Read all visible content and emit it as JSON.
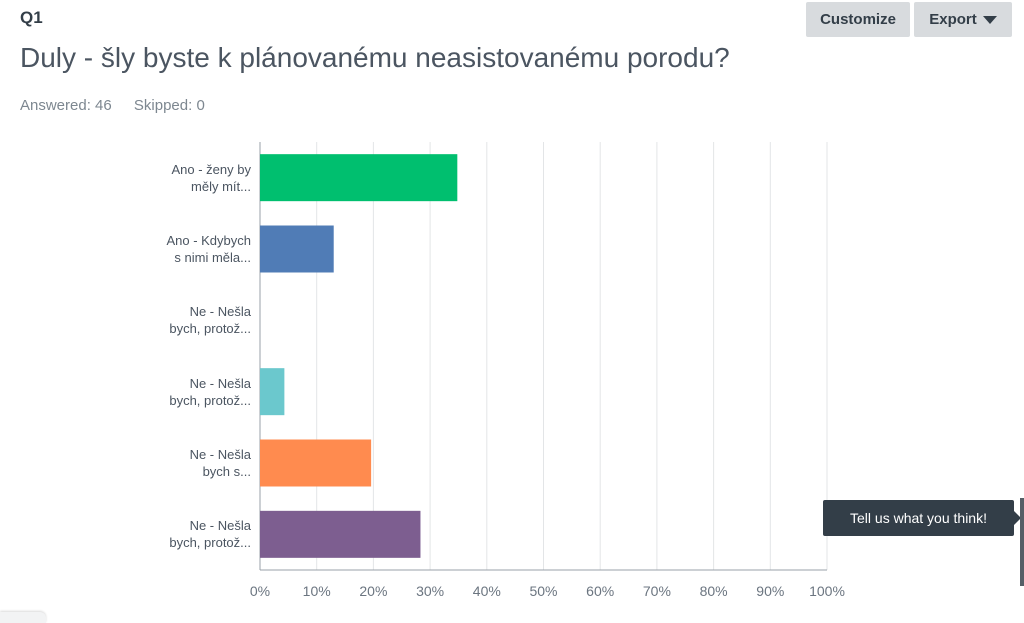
{
  "header": {
    "question_number": "Q1",
    "title": "Duly - šly byste k plánovanému neasistovanému porodu?",
    "answered": "Answered: 46",
    "skipped": "Skipped: 0"
  },
  "toolbar": {
    "customize_label": "Customize",
    "export_label": "Export"
  },
  "feedback": {
    "label": "Tell us what you think!"
  },
  "chart_data": {
    "type": "bar",
    "orientation": "horizontal",
    "title": "",
    "xlabel": "",
    "ylabel": "",
    "xlim": [
      0,
      100
    ],
    "grid": true,
    "ticks": [
      "0%",
      "10%",
      "20%",
      "30%",
      "40%",
      "50%",
      "60%",
      "70%",
      "80%",
      "90%",
      "100%"
    ],
    "categories": [
      [
        "Ano - ženy by",
        "měly mít..."
      ],
      [
        "Ano - Kdybych",
        "s nimi měla..."
      ],
      [
        "Ne - Nešla",
        "bych, protož..."
      ],
      [
        "Ne - Nešla",
        "bych, protož..."
      ],
      [
        "Ne - Nešla",
        "bych s..."
      ],
      [
        "Ne - Nešla",
        "bych, protož..."
      ]
    ],
    "values": [
      34.8,
      13.0,
      0,
      4.3,
      19.6,
      28.3
    ],
    "colors": [
      "#00bf6f",
      "#507cb6",
      "#f9be00",
      "#6bc8cd",
      "#ff8b4f",
      "#7d5e90"
    ]
  }
}
